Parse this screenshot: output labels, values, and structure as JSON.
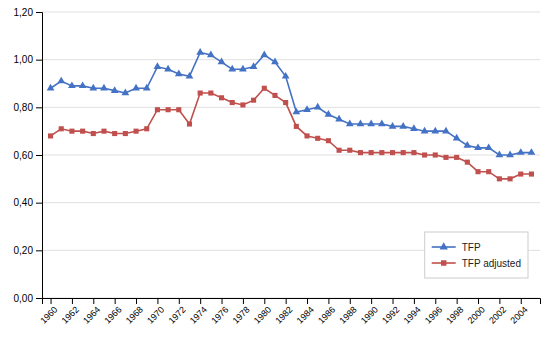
{
  "chart_data": {
    "type": "line",
    "x": [
      1960,
      1961,
      1962,
      1963,
      1964,
      1965,
      1966,
      1967,
      1968,
      1969,
      1970,
      1971,
      1972,
      1973,
      1974,
      1975,
      1976,
      1977,
      1978,
      1979,
      1980,
      1981,
      1982,
      1983,
      1984,
      1985,
      1986,
      1987,
      1988,
      1989,
      1990,
      1991,
      1992,
      1993,
      1994,
      1995,
      1996,
      1997,
      1998,
      1999,
      2000,
      2001,
      2002,
      2003,
      2004,
      2005
    ],
    "series": [
      {
        "name": "TFP",
        "color": "#4472C4",
        "marker": "triangle",
        "values": [
          0.88,
          0.91,
          0.89,
          0.89,
          0.88,
          0.88,
          0.87,
          0.86,
          0.88,
          0.88,
          0.97,
          0.96,
          0.94,
          0.93,
          1.03,
          1.02,
          0.99,
          0.96,
          0.96,
          0.97,
          1.02,
          0.99,
          0.93,
          0.78,
          0.79,
          0.8,
          0.77,
          0.75,
          0.73,
          0.73,
          0.73,
          0.73,
          0.72,
          0.72,
          0.71,
          0.7,
          0.7,
          0.7,
          0.67,
          0.64,
          0.63,
          0.63,
          0.6,
          0.6,
          0.61,
          0.61
        ]
      },
      {
        "name": "TFP adjusted",
        "color": "#C0504D",
        "marker": "square",
        "values": [
          0.68,
          0.71,
          0.7,
          0.7,
          0.69,
          0.7,
          0.69,
          0.69,
          0.7,
          0.71,
          0.79,
          0.79,
          0.79,
          0.73,
          0.86,
          0.86,
          0.84,
          0.82,
          0.81,
          0.83,
          0.88,
          0.85,
          0.82,
          0.72,
          0.68,
          0.67,
          0.66,
          0.62,
          0.62,
          0.61,
          0.61,
          0.61,
          0.61,
          0.61,
          0.61,
          0.6,
          0.6,
          0.59,
          0.59,
          0.57,
          0.53,
          0.53,
          0.5,
          0.5,
          0.52,
          0.52
        ]
      }
    ],
    "xlim": [
      1959.2,
      2005.8
    ],
    "xticks": [
      1960,
      1962,
      1964,
      1966,
      1968,
      1970,
      1972,
      1974,
      1976,
      1978,
      1980,
      1982,
      1984,
      1986,
      1988,
      1990,
      1992,
      1994,
      1996,
      1998,
      2000,
      2002,
      2004
    ],
    "ylim": [
      0.0,
      1.2
    ],
    "yticks": [
      {
        "value": 0.0,
        "label": "0,00"
      },
      {
        "value": 0.2,
        "label": "0,20"
      },
      {
        "value": 0.4,
        "label": "0,40"
      },
      {
        "value": 0.6,
        "label": "0,60"
      },
      {
        "value": 0.8,
        "label": "0,80"
      },
      {
        "value": 1.0,
        "label": "1,00"
      },
      {
        "value": 1.2,
        "label": "1,20"
      }
    ],
    "grid": "y",
    "legend": "lower right"
  }
}
